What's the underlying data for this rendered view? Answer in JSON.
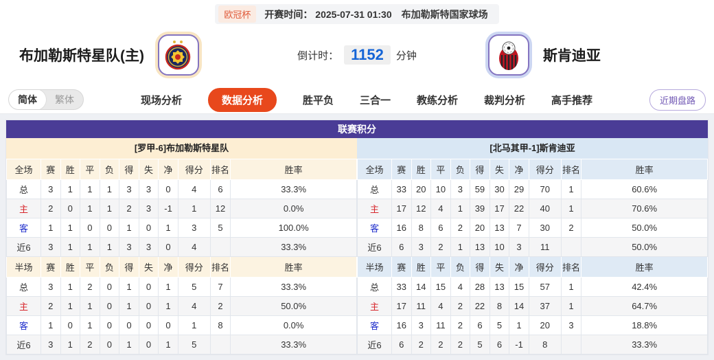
{
  "header": {
    "league_badge": "欧冠杯",
    "kickoff_text": "开赛时间： 2025-07-31 01:30",
    "venue": "布加勒斯特国家球场",
    "home_team": "布加勒斯特星队(主)",
    "away_team": "斯肯迪亚",
    "countdown_label": "倒计时：",
    "countdown_value": "1152",
    "countdown_unit": "分钟"
  },
  "nav": {
    "lang_simplified": "简体",
    "lang_traditional": "繁体",
    "tabs": [
      {
        "label": "现场分析",
        "active": false
      },
      {
        "label": "数据分析",
        "active": true
      },
      {
        "label": "胜平负",
        "active": false
      },
      {
        "label": "三合一",
        "active": false
      },
      {
        "label": "教练分析",
        "active": false
      },
      {
        "label": "裁判分析",
        "active": false
      },
      {
        "label": "高手推荐",
        "active": false
      }
    ],
    "recent_trends_button": "近期盘路"
  },
  "league_table": {
    "title": "联赛积分",
    "home": {
      "section_title": "[罗甲-6]布加勒斯特星队",
      "full": {
        "headers": [
          "全场",
          "赛",
          "胜",
          "平",
          "负",
          "得",
          "失",
          "净",
          "得分",
          "排名",
          "胜率"
        ],
        "rows": [
          {
            "label": "总",
            "values": [
              "3",
              "1",
              "1",
              "1",
              "3",
              "3",
              "0",
              "4",
              "6",
              "33.3%"
            ]
          },
          {
            "label": "主",
            "values": [
              "2",
              "0",
              "1",
              "1",
              "2",
              "3",
              "-1",
              "1",
              "12",
              "0.0%"
            ]
          },
          {
            "label": "客",
            "values": [
              "1",
              "1",
              "0",
              "0",
              "1",
              "0",
              "1",
              "3",
              "5",
              "100.0%"
            ]
          },
          {
            "label": "近6",
            "values": [
              "3",
              "1",
              "1",
              "1",
              "3",
              "3",
              "0",
              "4",
              "",
              "33.3%"
            ]
          }
        ]
      },
      "half": {
        "headers": [
          "半场",
          "赛",
          "胜",
          "平",
          "负",
          "得",
          "失",
          "净",
          "得分",
          "排名",
          "胜率"
        ],
        "rows": [
          {
            "label": "总",
            "values": [
              "3",
              "1",
              "2",
              "0",
              "1",
              "0",
              "1",
              "5",
              "7",
              "33.3%"
            ]
          },
          {
            "label": "主",
            "values": [
              "2",
              "1",
              "1",
              "0",
              "1",
              "0",
              "1",
              "4",
              "2",
              "50.0%"
            ]
          },
          {
            "label": "客",
            "values": [
              "1",
              "0",
              "1",
              "0",
              "0",
              "0",
              "0",
              "1",
              "8",
              "0.0%"
            ]
          },
          {
            "label": "近6",
            "values": [
              "3",
              "1",
              "2",
              "0",
              "1",
              "0",
              "1",
              "5",
              "",
              "33.3%"
            ]
          }
        ]
      }
    },
    "away": {
      "section_title": "[北马其甲-1]斯肯迪亚",
      "full": {
        "headers": [
          "全场",
          "赛",
          "胜",
          "平",
          "负",
          "得",
          "失",
          "净",
          "得分",
          "排名",
          "胜率"
        ],
        "rows": [
          {
            "label": "总",
            "values": [
              "33",
              "20",
              "10",
              "3",
              "59",
              "30",
              "29",
              "70",
              "1",
              "60.6%"
            ]
          },
          {
            "label": "主",
            "values": [
              "17",
              "12",
              "4",
              "1",
              "39",
              "17",
              "22",
              "40",
              "1",
              "70.6%"
            ]
          },
          {
            "label": "客",
            "values": [
              "16",
              "8",
              "6",
              "2",
              "20",
              "13",
              "7",
              "30",
              "2",
              "50.0%"
            ]
          },
          {
            "label": "近6",
            "values": [
              "6",
              "3",
              "2",
              "1",
              "13",
              "10",
              "3",
              "11",
              "",
              "50.0%"
            ]
          }
        ]
      },
      "half": {
        "headers": [
          "半场",
          "赛",
          "胜",
          "平",
          "负",
          "得",
          "失",
          "净",
          "得分",
          "排名",
          "胜率"
        ],
        "rows": [
          {
            "label": "总",
            "values": [
              "33",
              "14",
              "15",
              "4",
              "28",
              "13",
              "15",
              "57",
              "1",
              "42.4%"
            ]
          },
          {
            "label": "主",
            "values": [
              "17",
              "11",
              "4",
              "2",
              "22",
              "8",
              "14",
              "37",
              "1",
              "64.7%"
            ]
          },
          {
            "label": "客",
            "values": [
              "16",
              "3",
              "11",
              "2",
              "6",
              "5",
              "1",
              "20",
              "3",
              "18.8%"
            ]
          },
          {
            "label": "近6",
            "values": [
              "6",
              "2",
              "2",
              "2",
              "5",
              "6",
              "-1",
              "8",
              "",
              "33.3%"
            ]
          }
        ]
      }
    }
  },
  "colors": {
    "accent_orange": "#e8481c",
    "title_purple": "#4a3c96",
    "home_section_bg": "#fdeed3",
    "away_section_bg": "#d9e7f4",
    "home_header_bg": "#fcf3e1",
    "away_header_bg": "#dfeaf5",
    "home_row_red": "#d7262c",
    "away_row_blue": "#2230cc",
    "countdown_blue": "#1565d6",
    "badge_text": "#e05a3a",
    "badge_bg": "#fbebe2"
  }
}
